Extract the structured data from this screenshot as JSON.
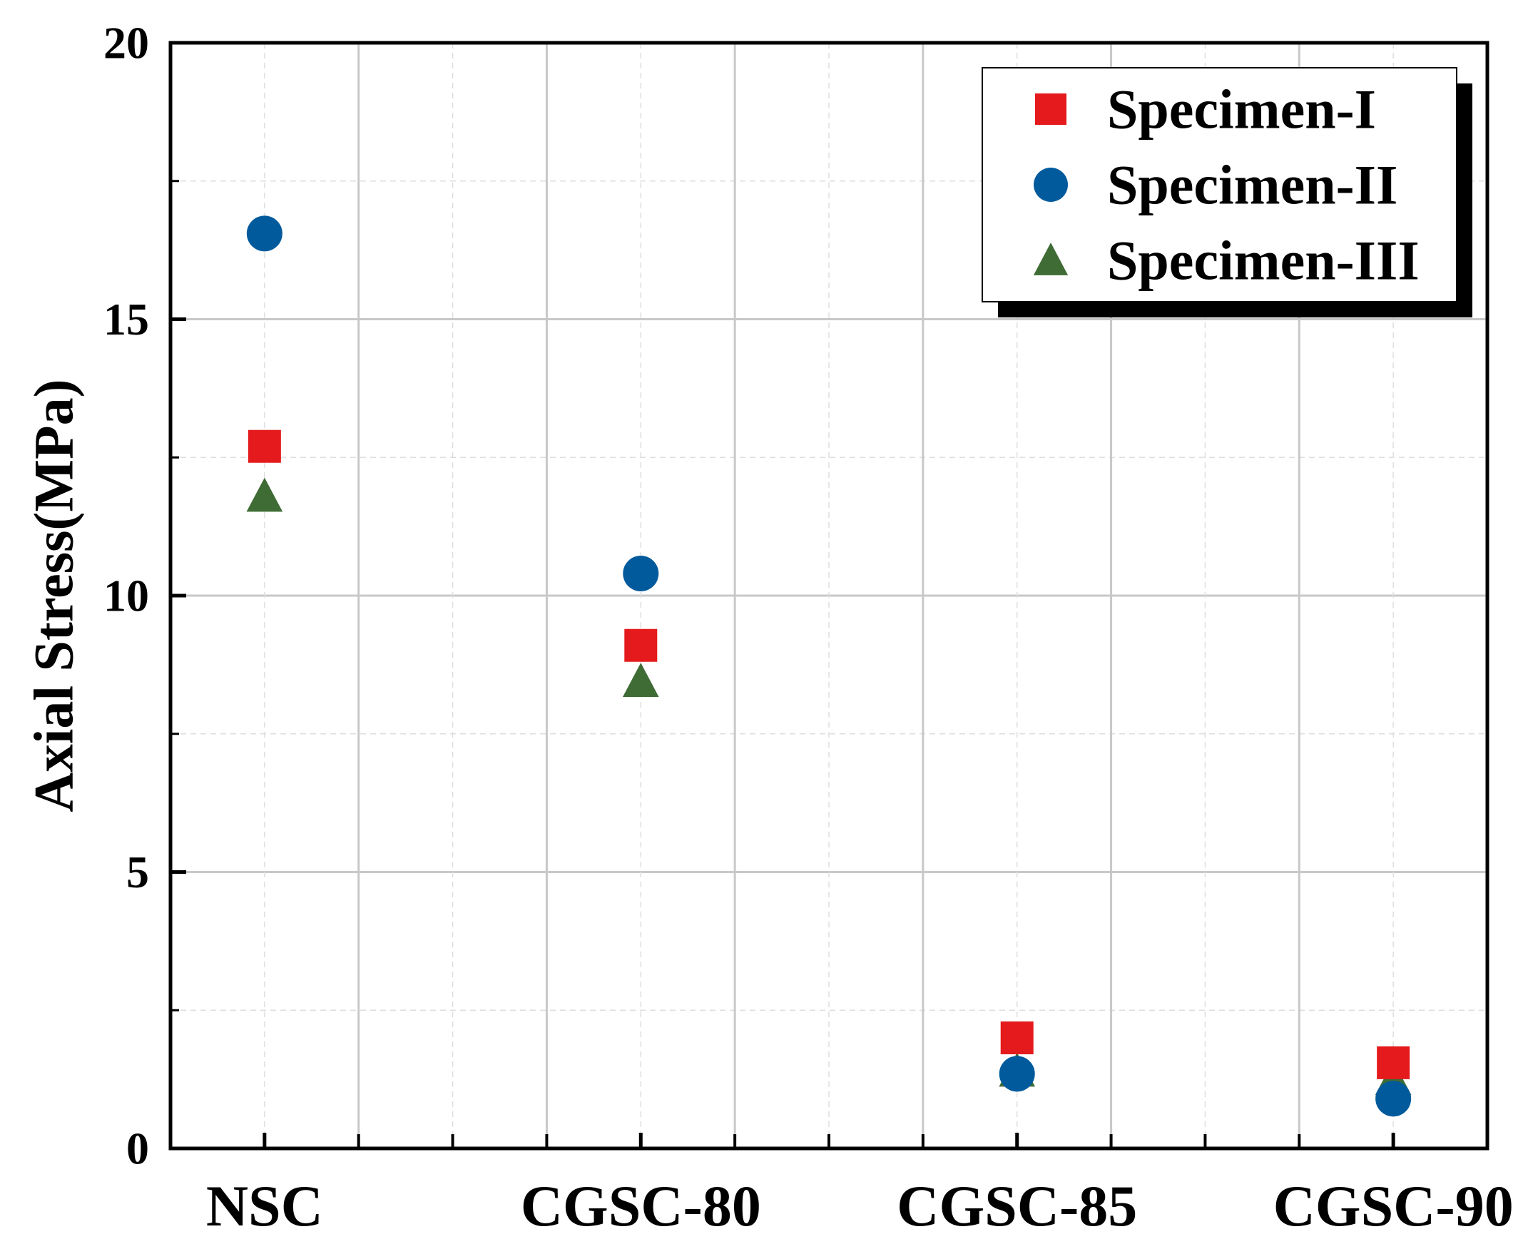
{
  "chart_data": {
    "type": "scatter",
    "title": "",
    "xlabel": "",
    "ylabel": "Axial Stress(MPa)",
    "ylim": [
      0,
      20
    ],
    "yticks": [
      "0",
      "5",
      "10",
      "15",
      "20"
    ],
    "categories": [
      "NSC",
      "CGSC-80",
      "CGSC-85",
      "CGSC-90"
    ],
    "grid": true,
    "legend_position": "top-right",
    "series": [
      {
        "name": "Specimen-I",
        "marker": "square",
        "color": "#e41a1c",
        "values": [
          12.7,
          9.1,
          2.0,
          1.55
        ]
      },
      {
        "name": "Specimen-II",
        "marker": "circle",
        "color": "#005a9c",
        "values": [
          16.55,
          10.4,
          1.35,
          0.9
        ]
      },
      {
        "name": "Specimen-III",
        "marker": "triangle",
        "color": "#3f6b35",
        "values": [
          11.8,
          8.45,
          1.4,
          1.25
        ]
      }
    ]
  }
}
